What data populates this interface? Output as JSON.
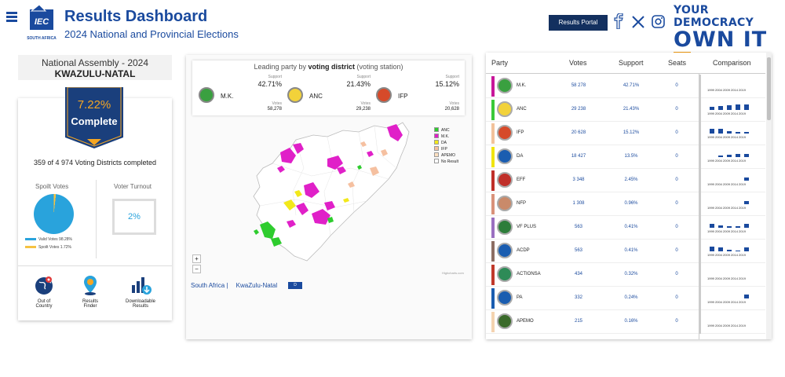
{
  "header": {
    "title": "Results Dashboard",
    "subtitle": "2024 National and Provincial Elections",
    "logo_text": "IEC",
    "logo_sub": "SOUTH AFRICA",
    "portal_button": "Results Portal",
    "slogan_line1": "YOUR DEMOCRACY",
    "slogan_line2": "OWN IT",
    "slogan_x": "X"
  },
  "left": {
    "assembly": "National Assembly - 2024",
    "province": "KWAZULU-NATAL",
    "percent": "7.22%",
    "complete": "Complete",
    "completed_text": "359 of 4 974 Voting Districts completed",
    "spoilt_title": "Spoilt Votes",
    "valid_label": "Valid Votes 98.28%",
    "spoilt_label": "Spoilt Votes 1.72%",
    "turnout_title": "Voter Turnout",
    "turnout_value": "2%",
    "valid_fraction": 0.9828,
    "tools": [
      {
        "label1": "Out of",
        "label2": "Country"
      },
      {
        "label1": "Results",
        "label2": "Finder"
      },
      {
        "label1": "Downloadable",
        "label2": "Results"
      }
    ]
  },
  "map": {
    "lead_prefix": "Leading party by ",
    "lead_bold": "voting district",
    "lead_suffix": " (voting station)",
    "support_label": "Support",
    "votes_label": "Votes",
    "leaders": [
      {
        "name": "M.K.",
        "support": "42.71%",
        "votes": "58,278"
      },
      {
        "name": "ANC",
        "support": "21.43%",
        "votes": "29,238"
      },
      {
        "name": "IFP",
        "support": "15.12%",
        "votes": "20,628"
      }
    ],
    "legend": [
      {
        "label": "ANC",
        "color": "#2ecc2e"
      },
      {
        "label": "M.K.",
        "color": "#e020c8"
      },
      {
        "label": "DA",
        "color": "#f2e81a"
      },
      {
        "label": "IFP",
        "color": "#f5c0a0"
      },
      {
        "label": "APEMO",
        "color": "#fde0c0"
      },
      {
        "label": "No Result",
        "color": "#ffffff"
      }
    ],
    "zoom_in": "+",
    "zoom_out": "−",
    "credits": "Highcharts.com",
    "crumb1": "South Africa |",
    "crumb2": "KwaZulu-Natal",
    "crumb_btn": "D"
  },
  "table": {
    "headers": {
      "party": "Party",
      "votes": "Votes",
      "support": "Support",
      "seats": "Seats",
      "comparison": "Comparison"
    },
    "years": "1999 2004 2009 2014 2019",
    "rows": [
      {
        "name": "M.K.",
        "votes": "58 278",
        "support": "42.71%",
        "seats": "0",
        "color": "#c8179a",
        "hist": [
          0,
          0,
          0,
          0,
          0
        ]
      },
      {
        "name": "ANC",
        "votes": "29 238",
        "support": "21.43%",
        "seats": "0",
        "color": "#39c939",
        "hist": [
          0.5,
          0.6,
          0.8,
          0.9,
          0.9
        ]
      },
      {
        "name": "IFP",
        "votes": "20 628",
        "support": "15.12%",
        "seats": "0",
        "color": "#f2c29b",
        "hist": [
          0.8,
          0.7,
          0.4,
          0.2,
          0.3
        ]
      },
      {
        "name": "DA",
        "votes": "18 427",
        "support": "13.5%",
        "seats": "0",
        "color": "#f1e40f",
        "hist": [
          0,
          0.3,
          0.4,
          0.5,
          0.5
        ]
      },
      {
        "name": "EFF",
        "votes": "3 348",
        "support": "2.45%",
        "seats": "0",
        "color": "#c0302a",
        "hist": [
          0,
          0,
          0,
          0,
          0.5
        ]
      },
      {
        "name": "NFP",
        "votes": "1 308",
        "support": "0.96%",
        "seats": "0",
        "color": "#d9927a",
        "hist": [
          0,
          0,
          0,
          0,
          0.5
        ]
      },
      {
        "name": "VF PLUS",
        "votes": "563",
        "support": "0.41%",
        "seats": "0",
        "color": "#9a6fc0",
        "hist": [
          0.6,
          0.4,
          0.3,
          0.2,
          0.6
        ]
      },
      {
        "name": "ACDP",
        "votes": "563",
        "support": "0.41%",
        "seats": "0",
        "color": "#8d6e63",
        "hist": [
          0.7,
          0.6,
          0.3,
          0.1,
          0.6
        ]
      },
      {
        "name": "ACTIONSA",
        "votes": "434",
        "support": "0.32%",
        "seats": "0",
        "color": "#c0392b",
        "hist": [
          0,
          0,
          0,
          0,
          0
        ]
      },
      {
        "name": "PA",
        "votes": "332",
        "support": "0.24%",
        "seats": "0",
        "color": "#1a5db0",
        "hist": [
          0,
          0,
          0,
          0,
          0.6
        ]
      },
      {
        "name": "APEMO",
        "votes": "215",
        "support": "0.16%",
        "seats": "0",
        "color": "#f5d3b0",
        "hist": [
          0,
          0,
          0,
          0,
          0
        ]
      }
    ]
  }
}
